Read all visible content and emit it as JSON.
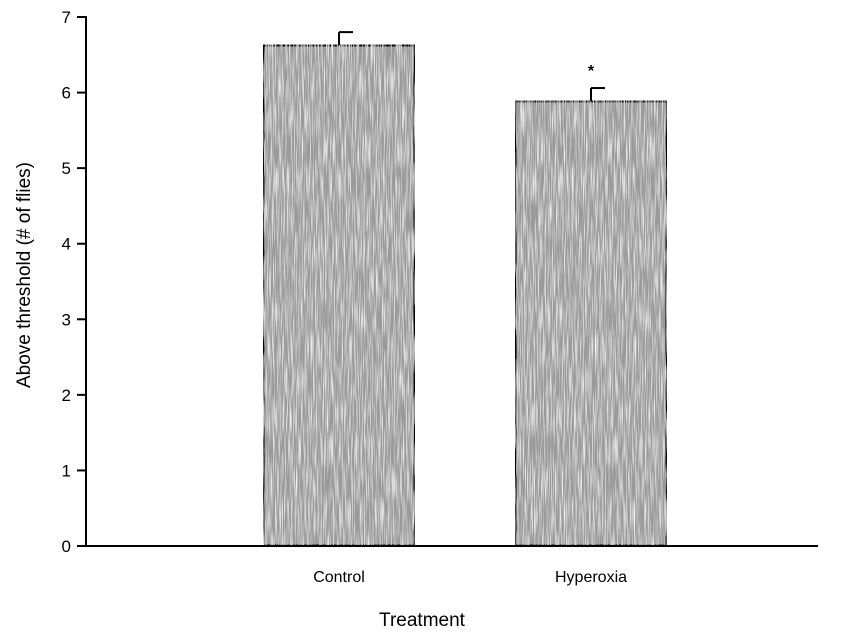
{
  "chart_data": {
    "type": "bar",
    "title": "",
    "xlabel": "Treatment",
    "ylabel": "Above threshold (# of flies)",
    "categories": [
      "Control",
      "Hyperoxia"
    ],
    "values": [
      6.63,
      5.89
    ],
    "errors": [
      0.17,
      0.17
    ],
    "annotations": [
      "",
      "*"
    ],
    "ylim": [
      0,
      7
    ],
    "yticks": [
      0,
      1,
      2,
      3,
      4,
      5,
      6,
      7
    ],
    "grid": false,
    "colors": {
      "bar_fill": "#9a9a9a",
      "bar_stroke": "#000000",
      "axis": "#000000"
    }
  }
}
